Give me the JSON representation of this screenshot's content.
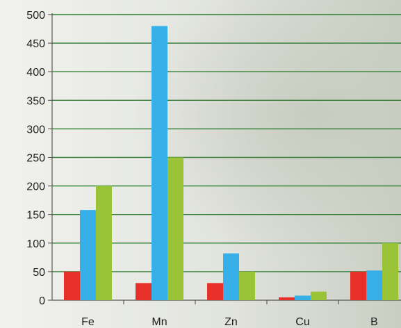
{
  "chart_data": {
    "type": "bar",
    "categories": [
      "Fe",
      "Mn",
      "Zn",
      "Cu",
      "B"
    ],
    "series": [
      {
        "color": "#e8302b",
        "values": [
          50,
          30,
          30,
          5,
          50
        ]
      },
      {
        "color": "#37b0ea",
        "values": [
          158,
          480,
          82,
          8,
          52
        ]
      },
      {
        "color": "#9bc337",
        "values": [
          200,
          250,
          50,
          15,
          100
        ]
      }
    ],
    "yticks": [
      "0",
      "50",
      "100",
      "150",
      "200",
      "250",
      "300",
      "350",
      "400",
      "450",
      "500"
    ],
    "ylim": [
      0,
      500
    ],
    "gridlines": true,
    "gridline_color": "#2e7d32",
    "title": "",
    "xlabel": "",
    "ylabel": ""
  }
}
